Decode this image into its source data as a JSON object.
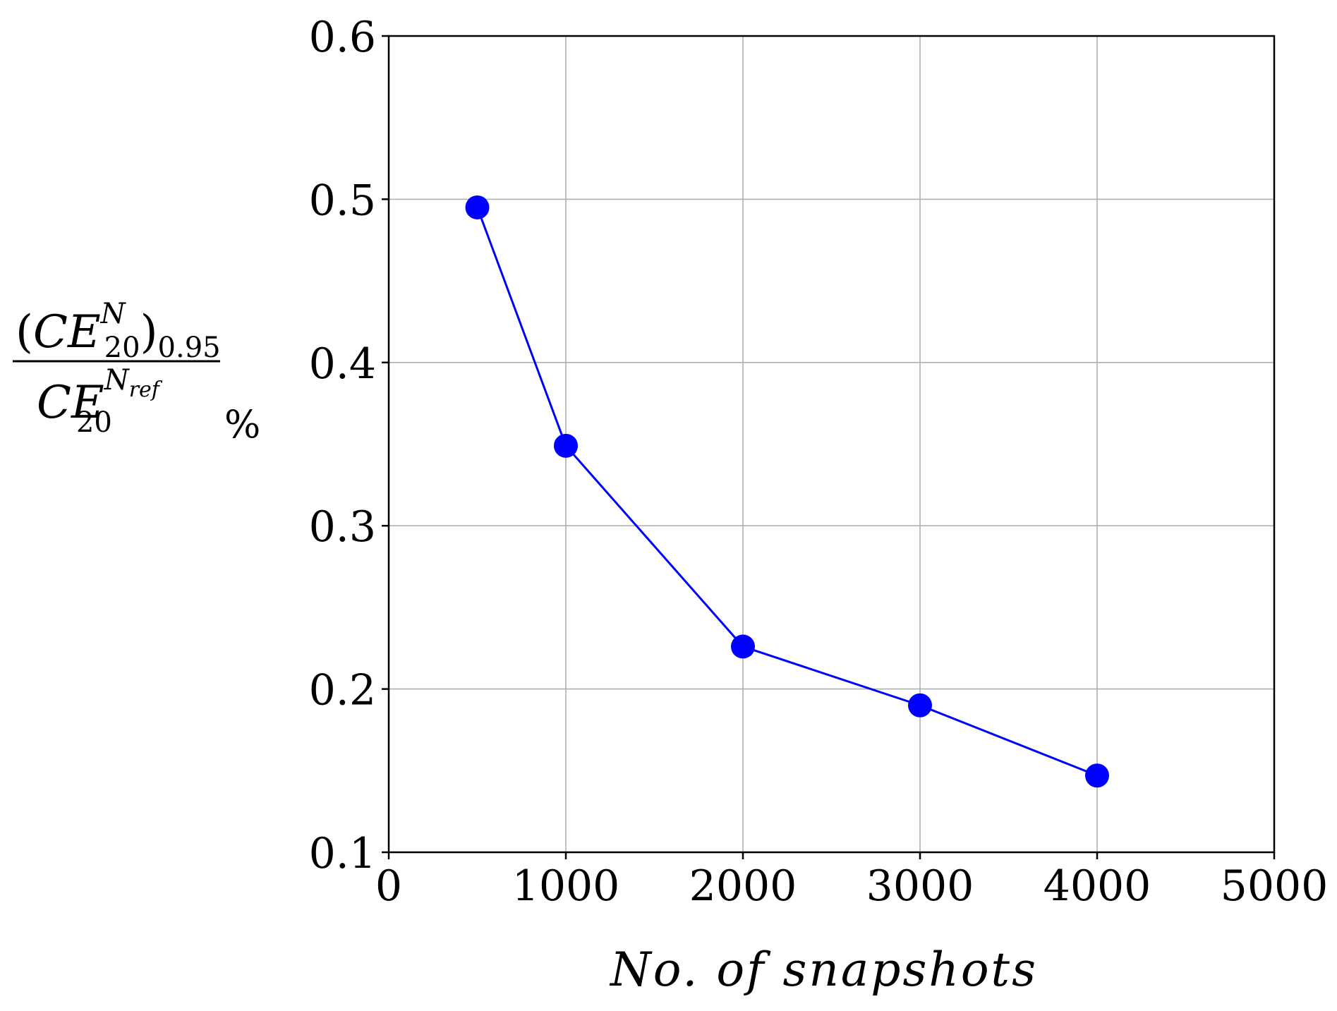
{
  "chart_data": {
    "type": "line",
    "title": "",
    "xlabel": "No. of snapshots",
    "ylabel": {
      "numerator": {
        "open_paren": "(",
        "base": "CE",
        "sup": "N",
        "sub": "20",
        "close_paren": ")",
        "outer_sub": "0.95"
      },
      "denominator": {
        "base": "CE",
        "sup_main": "N",
        "sup_sub": "ref",
        "sub": "20"
      },
      "unit": "%"
    },
    "xlim": [
      0,
      5000
    ],
    "ylim": [
      0.1,
      0.6
    ],
    "xticks": [
      0,
      1000,
      2000,
      3000,
      4000,
      5000
    ],
    "yticks": [
      0.1,
      0.2,
      0.3,
      0.4,
      0.5,
      0.6
    ],
    "xtick_labels": [
      "0",
      "1000",
      "2000",
      "3000",
      "4000",
      "5000"
    ],
    "ytick_labels": [
      "0.1",
      "0.2",
      "0.3",
      "0.4",
      "0.5",
      "0.6"
    ],
    "grid": true,
    "legend": "none",
    "series": [
      {
        "x": [
          500,
          1000,
          2000,
          3000,
          4000
        ],
        "y": [
          0.495,
          0.349,
          0.226,
          0.19,
          0.147
        ],
        "color": "#0000ff",
        "marker": "circle"
      }
    ]
  }
}
